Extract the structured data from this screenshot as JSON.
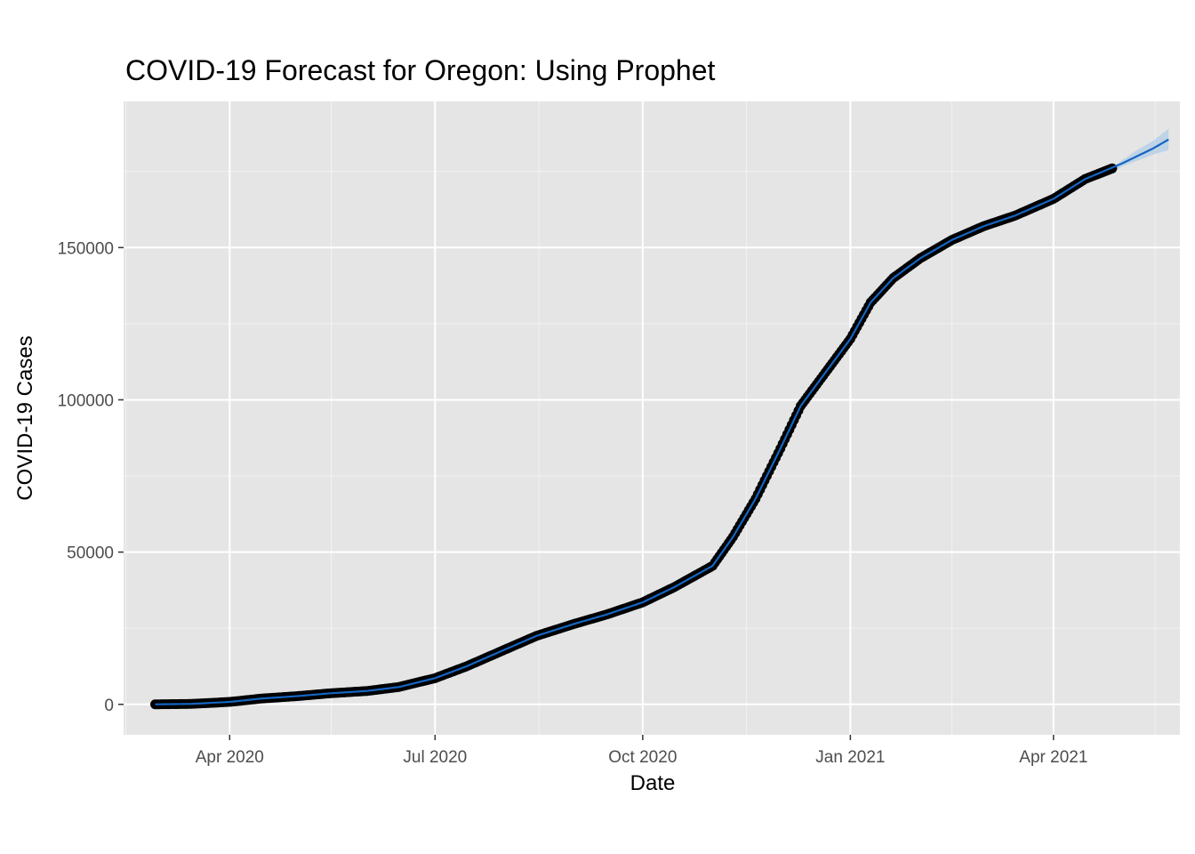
{
  "chart_data": {
    "type": "line",
    "title": "COVID-19 Forecast for Oregon: Using Prophet",
    "xlabel": "Date",
    "ylabel": "COVID-19 Cases",
    "x_ticks": [
      "Apr 2020",
      "Jul 2020",
      "Oct 2020",
      "Jan 2021",
      "Apr 2021"
    ],
    "y_ticks": [
      "0",
      "50000",
      "100000",
      "150000"
    ],
    "xlim": [
      "2020-02-14",
      "2021-05-27"
    ],
    "ylim": [
      -10000,
      198000
    ],
    "grid": true,
    "series": [
      {
        "kind": "observed-points",
        "color": "#000000",
        "x": [
          "2020-02-28",
          "2020-03-15",
          "2020-04-01",
          "2020-04-15",
          "2020-05-01",
          "2020-05-15",
          "2020-06-01",
          "2020-06-15",
          "2020-07-01",
          "2020-07-15",
          "2020-08-01",
          "2020-08-15",
          "2020-09-01",
          "2020-09-15",
          "2020-10-01",
          "2020-10-15",
          "2020-11-01",
          "2020-11-10",
          "2020-11-20",
          "2020-12-01",
          "2020-12-10",
          "2020-12-20",
          "2021-01-01",
          "2021-01-10",
          "2021-01-20",
          "2021-02-01",
          "2021-02-15",
          "2021-03-01",
          "2021-03-15",
          "2021-04-01",
          "2021-04-15",
          "2021-04-27"
        ],
        "y": [
          0,
          150,
          800,
          1900,
          2700,
          3600,
          4400,
          5700,
          8600,
          12500,
          18000,
          22500,
          26500,
          29500,
          33500,
          38500,
          45500,
          55000,
          67500,
          84000,
          98000,
          108000,
          120000,
          132000,
          140000,
          146500,
          152500,
          157000,
          160500,
          166000,
          172500,
          176000
        ]
      },
      {
        "kind": "forecast-line",
        "color": "#1565c0",
        "x": [
          "2020-02-28",
          "2020-03-15",
          "2020-04-01",
          "2020-04-15",
          "2020-05-01",
          "2020-05-15",
          "2020-06-01",
          "2020-06-15",
          "2020-07-01",
          "2020-07-15",
          "2020-08-01",
          "2020-08-15",
          "2020-09-01",
          "2020-09-15",
          "2020-10-01",
          "2020-10-15",
          "2020-11-01",
          "2020-11-10",
          "2020-11-20",
          "2020-12-01",
          "2020-12-10",
          "2020-12-20",
          "2021-01-01",
          "2021-01-10",
          "2021-01-20",
          "2021-02-01",
          "2021-02-15",
          "2021-03-01",
          "2021-03-15",
          "2021-04-01",
          "2021-04-15",
          "2021-05-01",
          "2021-05-15",
          "2021-05-22"
        ],
        "y": [
          0,
          150,
          800,
          1900,
          2700,
          3600,
          4400,
          5700,
          8600,
          12500,
          18000,
          22500,
          26500,
          29500,
          33500,
          38500,
          45500,
          55000,
          67500,
          84000,
          98000,
          108000,
          120000,
          132000,
          140000,
          146500,
          152500,
          157000,
          160500,
          166000,
          172500,
          177500,
          182500,
          185500
        ]
      },
      {
        "kind": "forecast-interval",
        "color": "#9ec5e8",
        "x": [
          "2021-04-27",
          "2021-05-01",
          "2021-05-08",
          "2021-05-15",
          "2021-05-22"
        ],
        "lower": [
          174500,
          176500,
          178500,
          180500,
          182000
        ],
        "upper": [
          176000,
          178500,
          182000,
          185000,
          189000
        ]
      }
    ]
  }
}
